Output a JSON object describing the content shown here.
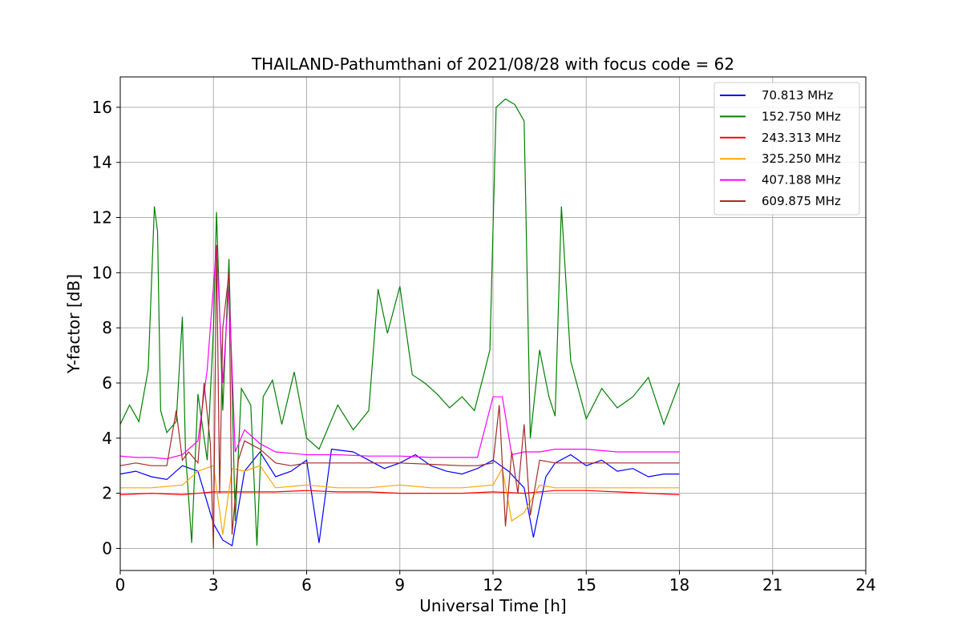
{
  "chart_data": {
    "type": "line",
    "title": "THAILAND-Pathumthani of 2021/08/28 with focus code = 62",
    "xlabel": "Universal Time [h]",
    "ylabel": "Y-factor [dB]",
    "xlim": [
      0,
      24
    ],
    "ylim": [
      -0.8,
      17.1
    ],
    "xticks": [
      0,
      3,
      6,
      9,
      12,
      15,
      18,
      21,
      24
    ],
    "yticks": [
      0,
      2,
      4,
      6,
      8,
      10,
      12,
      14,
      16
    ],
    "grid": true,
    "legend": "top-right",
    "series": [
      {
        "name": " 70.813 MHz",
        "color": "#0000ff",
        "x": [
          0,
          0.5,
          1,
          1.5,
          2,
          2.5,
          3,
          3.3,
          3.6,
          4,
          4.5,
          5,
          5.5,
          6,
          6.4,
          6.8,
          7.5,
          8,
          8.5,
          9,
          9.5,
          10,
          10.5,
          11,
          11.5,
          12,
          12.5,
          13,
          13.3,
          13.7,
          14,
          14.5,
          15,
          15.5,
          16,
          16.5,
          17,
          17.5,
          18
        ],
        "y": [
          2.7,
          2.8,
          2.6,
          2.5,
          3.0,
          2.8,
          0.9,
          0.3,
          0.1,
          2.8,
          3.5,
          2.6,
          2.8,
          3.2,
          0.2,
          3.6,
          3.5,
          3.2,
          2.9,
          3.1,
          3.4,
          3.0,
          2.8,
          2.7,
          2.9,
          3.2,
          2.8,
          2.2,
          0.4,
          2.6,
          3.1,
          3.4,
          3.0,
          3.2,
          2.8,
          2.9,
          2.6,
          2.7,
          2.7
        ]
      },
      {
        "name": "152.750 MHz",
        "color": "#008000",
        "x": [
          0,
          0.3,
          0.6,
          0.9,
          1.1,
          1.2,
          1.3,
          1.5,
          1.8,
          2.0,
          2.1,
          2.3,
          2.5,
          2.8,
          3.0,
          3.1,
          3.3,
          3.5,
          3.7,
          3.9,
          4.2,
          4.4,
          4.6,
          4.9,
          5.2,
          5.6,
          6.0,
          6.4,
          7.0,
          7.5,
          8.0,
          8.3,
          8.6,
          9.0,
          9.4,
          9.8,
          10.2,
          10.6,
          11.0,
          11.4,
          11.7,
          11.9,
          12.1,
          12.4,
          12.7,
          13.0,
          13.2,
          13.5,
          13.8,
          14.0,
          14.2,
          14.5,
          15.0,
          15.5,
          16.0,
          16.5,
          17.0,
          17.5,
          18.0
        ],
        "y": [
          4.5,
          5.2,
          4.6,
          6.5,
          12.4,
          11.5,
          5.0,
          4.2,
          4.6,
          8.4,
          3.5,
          0.2,
          5.6,
          3.2,
          8.0,
          12.2,
          5.0,
          10.5,
          1.0,
          5.8,
          5.2,
          0.1,
          5.5,
          6.1,
          4.5,
          6.4,
          4.0,
          3.6,
          5.2,
          4.3,
          5.0,
          9.4,
          7.8,
          9.5,
          6.3,
          6.0,
          5.6,
          5.1,
          5.5,
          5.0,
          6.3,
          7.2,
          16.0,
          16.3,
          16.1,
          15.5,
          4.0,
          7.2,
          5.5,
          4.8,
          12.4,
          6.8,
          4.7,
          5.8,
          5.1,
          5.5,
          6.2,
          4.5,
          6.0
        ]
      },
      {
        "name": "243.313 MHz",
        "color": "#ff0000",
        "x": [
          0,
          1,
          2,
          3,
          4,
          5,
          6,
          7,
          8,
          9,
          10,
          11,
          12,
          13,
          14,
          15,
          16,
          17,
          18
        ],
        "y": [
          1.95,
          2.0,
          1.95,
          2.05,
          2.05,
          2.05,
          2.1,
          2.05,
          2.05,
          2.0,
          2.0,
          2.0,
          2.05,
          2.0,
          2.1,
          2.1,
          2.05,
          2.0,
          1.95
        ]
      },
      {
        "name": "325.250 MHz",
        "color": "#ffa500",
        "x": [
          0,
          1,
          2,
          2.5,
          3,
          3.3,
          3.6,
          4,
          4.5,
          5,
          6,
          7,
          8,
          9,
          10,
          11,
          12,
          12.3,
          12.6,
          13,
          13.5,
          14,
          15,
          16,
          17,
          18
        ],
        "y": [
          2.2,
          2.2,
          2.3,
          2.8,
          3.0,
          0.5,
          2.9,
          2.8,
          3.0,
          2.2,
          2.3,
          2.2,
          2.2,
          2.3,
          2.2,
          2.2,
          2.3,
          2.9,
          1.0,
          1.3,
          2.3,
          2.2,
          2.2,
          2.2,
          2.2,
          2.2
        ]
      },
      {
        "name": "407.188 MHz",
        "color": "#ff00ff",
        "x": [
          0,
          0.5,
          1,
          1.5,
          2,
          2.5,
          2.8,
          3.1,
          3.3,
          3.5,
          3.7,
          4,
          4.5,
          5,
          6,
          7,
          8,
          9,
          10,
          11,
          11.5,
          12,
          12.3,
          12.6,
          13,
          13.5,
          14,
          15,
          16,
          17,
          18
        ],
        "y": [
          3.35,
          3.3,
          3.3,
          3.25,
          3.4,
          3.9,
          6.5,
          11.0,
          6.0,
          9.5,
          3.5,
          4.3,
          3.8,
          3.5,
          3.4,
          3.4,
          3.35,
          3.35,
          3.3,
          3.3,
          3.3,
          5.5,
          5.5,
          3.4,
          3.5,
          3.5,
          3.6,
          3.6,
          3.5,
          3.5,
          3.5
        ]
      },
      {
        "name": "609.875 MHz",
        "color": "#a52a2a",
        "x": [
          0,
          0.5,
          1,
          1.5,
          1.8,
          2.0,
          2.2,
          2.5,
          2.7,
          2.9,
          3.0,
          3.1,
          3.2,
          3.3,
          3.5,
          3.6,
          3.8,
          4.0,
          4.5,
          5.0,
          5.5,
          6.0,
          7.0,
          8.0,
          9.0,
          10.0,
          11.0,
          11.5,
          12.0,
          12.2,
          12.4,
          12.6,
          12.8,
          13.0,
          13.2,
          13.5,
          14.0,
          15.0,
          16.0,
          17.0,
          18.0
        ],
        "y": [
          3.0,
          3.1,
          3.0,
          3.0,
          5.0,
          3.2,
          3.5,
          3.1,
          6.0,
          3.8,
          0.0,
          11.0,
          2.0,
          8.0,
          10.0,
          0.5,
          3.2,
          3.9,
          3.6,
          3.1,
          3.0,
          3.1,
          3.1,
          3.1,
          3.1,
          3.05,
          3.0,
          3.0,
          3.1,
          5.2,
          0.8,
          3.5,
          2.0,
          4.5,
          1.2,
          3.2,
          3.1,
          3.1,
          3.1,
          3.1,
          3.1
        ]
      }
    ]
  }
}
